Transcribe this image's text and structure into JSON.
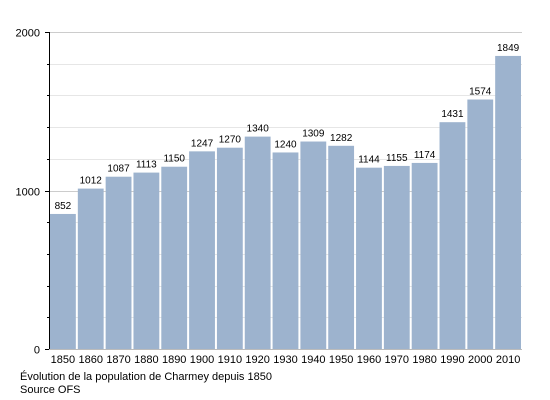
{
  "chart_data": {
    "type": "bar",
    "categories": [
      "1850",
      "1860",
      "1870",
      "1880",
      "1890",
      "1900",
      "1910",
      "1920",
      "1930",
      "1940",
      "1950",
      "1960",
      "1970",
      "1980",
      "1990",
      "2000",
      "2010"
    ],
    "values": [
      852,
      1012,
      1087,
      1113,
      1150,
      1247,
      1270,
      1340,
      1240,
      1309,
      1282,
      1144,
      1155,
      1174,
      1431,
      1574,
      1849
    ],
    "data_labels": [
      "852",
      "1012",
      "1087",
      "1113",
      "1150",
      "1247",
      "1270",
      "1340",
      "1240",
      "1309",
      "1282",
      "1144",
      "1155",
      "1174",
      "1431",
      "1574",
      "1849"
    ],
    "title": "",
    "xlabel": "",
    "ylabel": "",
    "ylim": [
      0,
      2000
    ],
    "y_tick_labels": [
      "0",
      "1000",
      "2000"
    ],
    "y_major_ticks": [
      0,
      1000,
      2000
    ],
    "y_minor_ticks": [
      200,
      400,
      600,
      800,
      1200,
      1400,
      1600,
      1800
    ],
    "grid": true,
    "legend": "none",
    "bar_color": "#9db3ce",
    "grid_color": "#cccccc"
  },
  "caption": {
    "title": "Évolution de la population de Charmey depuis 1850",
    "source": "Source OFS"
  }
}
